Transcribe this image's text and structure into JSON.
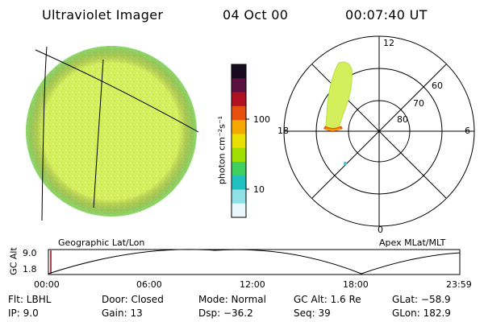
{
  "header": {
    "title": "Ultraviolet Imager",
    "date": "04 Oct 00",
    "time": "00:07:40 UT"
  },
  "colorbar": {
    "unit_label": "photon cm⁻²s⁻¹",
    "ticks": [
      "100",
      "10"
    ],
    "colors": [
      "#1a0a20",
      "#5a1040",
      "#b01020",
      "#e85010",
      "#f5a800",
      "#e8e000",
      "#a0e000",
      "#40d060",
      "#20c0c0",
      "#90e0e8",
      "#e8f8fa"
    ]
  },
  "polar": {
    "clock_labels": {
      "top": "12",
      "left": "18",
      "right": "6",
      "bottom": "0"
    },
    "lat_labels": [
      "60",
      "70",
      "80"
    ]
  },
  "left_image": {
    "label": "Geographic Lat/Lon",
    "fill_color": "#d8f060"
  },
  "right_image": {
    "label": "Apex MLat/MLT"
  },
  "timeline": {
    "axis_label": "GC Alt",
    "y_ticks": [
      "9.0",
      "1.8"
    ],
    "x_ticks": [
      "00:00",
      "06:00",
      "12:00",
      "18:00",
      "23:59"
    ],
    "cursor_color": "#b04050"
  },
  "footer": {
    "filter": "Flt: LBHL",
    "ip": "IP: 9.0",
    "door": "Door: Closed",
    "gain": "Gain: 13",
    "mode": "Mode: Normal",
    "dsp": "Dsp: −36.2",
    "gc_alt": "GC Alt: 1.6 Re",
    "seq": "Seq: 39",
    "glat": "GLat: −58.9",
    "glon": "GLon: 182.9"
  }
}
